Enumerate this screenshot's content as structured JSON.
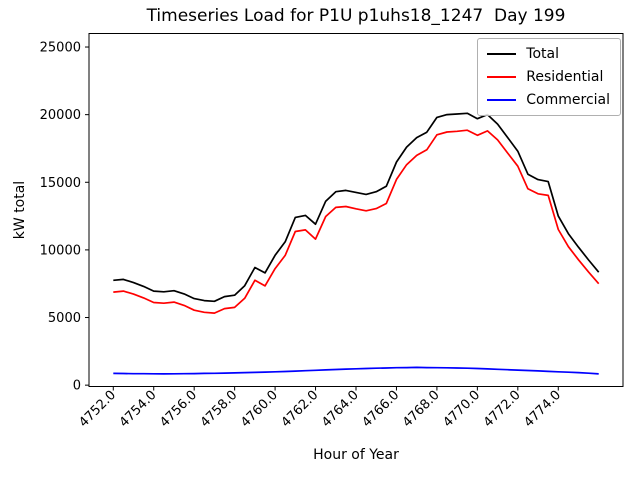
{
  "figure": {
    "background": "#ffffff"
  },
  "chart_data": {
    "type": "line",
    "title": "Timeseries Load for P1U p1uhs18_1247  Day 199",
    "xlabel": "Hour of Year",
    "ylabel": "kW total",
    "grid": false,
    "xlim": [
      4750.8,
      4777.2
    ],
    "ylim": [
      -100,
      26000
    ],
    "x_tick_values": [
      4752,
      4754,
      4756,
      4758,
      4760,
      4762,
      4764,
      4766,
      4768,
      4770,
      4772,
      4774
    ],
    "x_tick_labels": [
      "4752.0",
      "4754.0",
      "4756.0",
      "4758.0",
      "4760.0",
      "4762.0",
      "4764.0",
      "4766.0",
      "4768.0",
      "4770.0",
      "4772.0",
      "4774.0"
    ],
    "y_tick_values": [
      0,
      5000,
      10000,
      15000,
      20000,
      25000
    ],
    "y_tick_labels": [
      "0",
      "5000",
      "10000",
      "15000",
      "20000",
      "25000"
    ],
    "legend": {
      "position": "upper right",
      "entries": [
        {
          "label": "Total",
          "color": "#000000"
        },
        {
          "label": "Residential",
          "color": "#ff0000"
        },
        {
          "label": "Commercial",
          "color": "#0000ff"
        }
      ]
    },
    "x": [
      4752.0,
      4752.5,
      4753.0,
      4753.5,
      4754.0,
      4754.5,
      4755.0,
      4755.5,
      4756.0,
      4756.5,
      4757.0,
      4757.5,
      4758.0,
      4758.5,
      4759.0,
      4759.5,
      4760.0,
      4760.5,
      4761.0,
      4761.5,
      4762.0,
      4762.5,
      4763.0,
      4763.5,
      4764.0,
      4764.5,
      4765.0,
      4765.5,
      4766.0,
      4766.5,
      4767.0,
      4767.5,
      4768.0,
      4768.5,
      4769.0,
      4769.5,
      4770.0,
      4770.5,
      4771.0,
      4771.5,
      4772.0,
      4772.5,
      4773.0,
      4773.5,
      4774.0,
      4774.5,
      4775.0,
      4775.5,
      4776.0
    ],
    "series": [
      {
        "name": "Total",
        "color": "#000000",
        "values": [
          7750,
          7820,
          7580,
          7300,
          6950,
          6900,
          6980,
          6750,
          6400,
          6250,
          6200,
          6550,
          6650,
          7350,
          8700,
          8300,
          9600,
          10600,
          12400,
          12550,
          11900,
          13600,
          14300,
          14400,
          14250,
          14100,
          14300,
          14700,
          16500,
          17600,
          18300,
          18700,
          19800,
          20000,
          20050,
          20100,
          19700,
          20000,
          19300,
          18300,
          17300,
          15600,
          15200,
          15050,
          12500,
          11200,
          10200,
          9250,
          8350
        ]
      },
      {
        "name": "Residential",
        "color": "#ff0000",
        "values": [
          6880,
          6950,
          6730,
          6450,
          6110,
          6060,
          6140,
          5900,
          5545,
          5385,
          5325,
          5660,
          5745,
          6425,
          7755,
          7335,
          8615,
          9590,
          11360,
          11480,
          10800,
          12470,
          13140,
          13210,
          13040,
          12890,
          13050,
          13430,
          15210,
          16300,
          16990,
          17400,
          18510,
          18720,
          18770,
          18850,
          18470,
          18800,
          18130,
          17160,
          16190,
          14520,
          14150,
          14030,
          11510,
          10240,
          9270,
          8360,
          7500
        ]
      },
      {
        "name": "Commercial",
        "color": "#0000ff",
        "values": [
          870,
          860,
          850,
          845,
          840,
          835,
          840,
          845,
          855,
          865,
          875,
          890,
          905,
          925,
          945,
          965,
          985,
          1010,
          1040,
          1070,
          1100,
          1130,
          1160,
          1190,
          1210,
          1230,
          1250,
          1270,
          1290,
          1300,
          1310,
          1300,
          1290,
          1280,
          1270,
          1250,
          1230,
          1200,
          1170,
          1140,
          1110,
          1080,
          1050,
          1020,
          990,
          960,
          930,
          880,
          830
        ]
      }
    ]
  }
}
